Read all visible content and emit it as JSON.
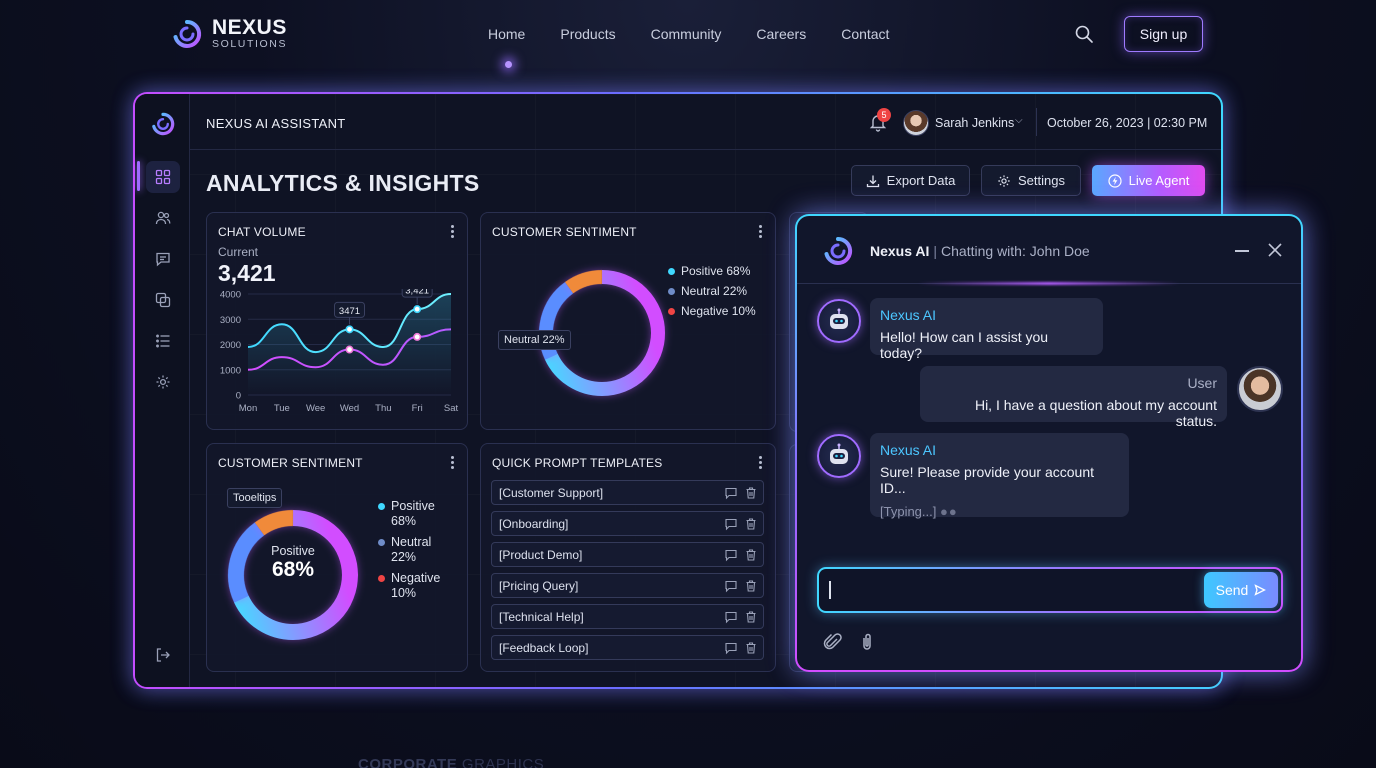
{
  "colors": {
    "accent_purple": "#b45cff",
    "accent_cyan": "#3fd8ff",
    "positive": "#3fd8ff",
    "neutral": "#5a8dff",
    "negative": "#ef4444",
    "warm": "#f08a3a"
  },
  "brand": {
    "name": "NEXUS",
    "sub": "SOLUTIONS"
  },
  "nav": {
    "links": [
      "Home",
      "Products",
      "Community",
      "Careers",
      "Contact"
    ],
    "search_icon": "search-icon",
    "signup_label": "Sign up"
  },
  "dashboard": {
    "assistant_title": "NEXUS AI ASSISTANT",
    "notification_count": "5",
    "user_name": "Sarah Jenkins",
    "datetime": "October 26, 2023 | 02:30 PM",
    "page_title": "ANALYTICS & INSIGHTS",
    "buttons": {
      "export": "Export Data",
      "settings": "Settings",
      "live": "Live Agent"
    },
    "sidebar_icons": [
      "grid-icon",
      "users-icon",
      "chat-icon",
      "copy-icon",
      "list-icon",
      "gear-icon",
      "logout-icon"
    ]
  },
  "chat_volume": {
    "title": "CHAT VOLUME",
    "current_label": "Current",
    "current_value": "3,421",
    "point_labels": [
      "3471",
      "3,421"
    ]
  },
  "sentiment_top": {
    "title": "CUSTOMER SENTIMENT",
    "legend": [
      "Positive 68%",
      "Neutral 22%",
      "Negative 10%"
    ],
    "callout": "Neutral 22%"
  },
  "sentiment_bottom": {
    "title": "CUSTOMER SENTIMENT",
    "tooltip": "Tooeltips",
    "center_label": "Positive",
    "center_value": "68%",
    "legend": [
      {
        "name": "Positive",
        "value": "68%"
      },
      {
        "name": "Neutral",
        "value": "22%"
      },
      {
        "name": "Negative",
        "value": "10%"
      }
    ]
  },
  "prompts": {
    "title": "QUICK PROMPT TEMPLATES",
    "items": [
      "[Customer Support]",
      "[Onboarding]",
      "[Product Demo]",
      "[Pricing Query]",
      "[Technical Help]",
      "[Feedback Loop]"
    ]
  },
  "chat": {
    "bot_name": "Nexus AI",
    "chatting_with": "Chatting with: John Doe",
    "messages": [
      {
        "sender": "Nexus AI",
        "text": "Hello! How can I assist you today?"
      },
      {
        "sender": "User",
        "text": "Hi, I have a question about my account status."
      },
      {
        "sender": "Nexus AI",
        "text": "Sure! Please provide your account ID..."
      }
    ],
    "typing": "[Typing...]",
    "input_value": "",
    "send_label": "Send"
  },
  "footer_ghost": {
    "bold": "CORPORATE",
    "rest": " GRAPHICS"
  },
  "chart_data": [
    {
      "type": "line",
      "title": "CHAT VOLUME",
      "categories": [
        "Mon",
        "Tue",
        "Wee",
        "Wed",
        "Thu",
        "Fri",
        "Sat"
      ],
      "ylim": [
        0,
        4000
      ],
      "yticks": [
        0,
        1000,
        2000,
        3000,
        4000
      ],
      "series": [
        {
          "values": [
            1900,
            2800,
            1700,
            2600,
            1900,
            3400,
            4000
          ]
        },
        {
          "values": [
            1000,
            1500,
            1100,
            1800,
            1200,
            2300,
            2600
          ]
        }
      ]
    },
    {
      "type": "pie",
      "title": "CUSTOMER SENTIMENT",
      "labels": [
        "Positive",
        "Neutral",
        "Negative"
      ],
      "values": [
        68,
        22,
        10
      ]
    },
    {
      "type": "pie",
      "title": "CUSTOMER SENTIMENT",
      "labels": [
        "Positive",
        "Neutral",
        "Negative"
      ],
      "values": [
        68,
        22,
        10
      ]
    }
  ]
}
